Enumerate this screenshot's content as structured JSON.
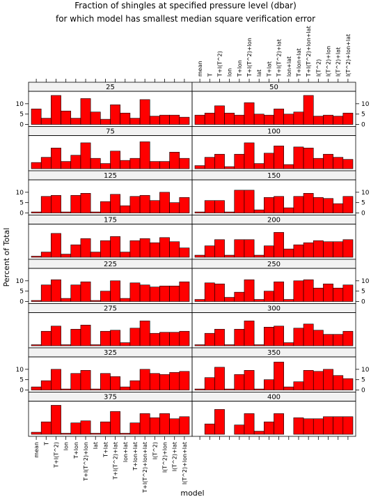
{
  "chart_data": {
    "type": "bar",
    "title": "Fraction of shingles at specified pressure level (dbar)",
    "subtitle": "for which model has smallest median square verification error",
    "xlabel": "model",
    "ylabel": "Percent of Total",
    "ylim": [
      -1,
      16
    ],
    "yticks": [
      0,
      5,
      10
    ],
    "bar_color": "#ff0000",
    "strip_color": "#f2f2f2",
    "categories": [
      "mean",
      "T",
      "T+I(T^2)",
      "lon",
      "T+lon",
      "T+I(T^2)+lon",
      "lat",
      "T+lat",
      "T+I(T^2)+lat",
      "lon+lat",
      "T+lon+lat",
      "T+I(T^2)+lon+lat",
      "I(T^2)",
      "I(T^2)+lon",
      "I(T^2)+lat",
      "I(T^2)+lon+lat"
    ],
    "panels": [
      {
        "level": "25",
        "values": [
          7.5,
          3,
          14,
          6.5,
          3,
          12.5,
          6,
          2.5,
          9.5,
          5.5,
          3,
          12,
          4,
          4.5,
          4.5,
          3.5
        ]
      },
      {
        "level": "50",
        "values": [
          4.5,
          5.5,
          9,
          5.5,
          4.5,
          10.5,
          5,
          4.5,
          7.5,
          5,
          6,
          14,
          4,
          4.5,
          4,
          5.5
        ]
      },
      {
        "level": "75",
        "values": [
          3,
          5.5,
          10,
          3.5,
          6.5,
          12.5,
          5,
          2.5,
          8.5,
          4,
          5,
          13,
          3.5,
          3.5,
          8,
          5
        ]
      },
      {
        "level": "100",
        "values": [
          1.5,
          5.5,
          7,
          1,
          7,
          12.5,
          2.5,
          7.5,
          11,
          2,
          10.5,
          10,
          5,
          7,
          5.5,
          4.5
        ]
      },
      {
        "level": "125",
        "values": [
          0.5,
          8,
          8.5,
          0.5,
          8.5,
          9.5,
          0.5,
          5.5,
          9,
          3.5,
          8,
          8.5,
          6,
          10,
          5,
          7.5
        ]
      },
      {
        "level": "150",
        "values": [
          0.5,
          6,
          6,
          0.5,
          11,
          11,
          1.5,
          7.5,
          8,
          2.5,
          8,
          9.5,
          7.5,
          7,
          4.5,
          8
        ]
      },
      {
        "level": "175",
        "values": [
          0.5,
          2.5,
          11.5,
          1.5,
          6,
          9,
          2.5,
          8,
          10,
          2.5,
          8,
          9,
          7,
          9.5,
          7.5,
          4.5
        ]
      },
      {
        "level": "200",
        "values": [
          1,
          5.5,
          8.5,
          1,
          8.5,
          8.5,
          1,
          5.5,
          12,
          4,
          6,
          7,
          8,
          7.5,
          7.5,
          8.5
        ]
      },
      {
        "level": "225",
        "values": [
          0.5,
          8,
          10.5,
          1.5,
          8,
          9.5,
          0.5,
          5,
          10,
          1.5,
          9,
          8,
          7,
          7.5,
          7.5,
          9.5
        ]
      },
      {
        "level": "250",
        "values": [
          1,
          9,
          8.5,
          2,
          4.5,
          10.5,
          1,
          5,
          9.5,
          1,
          10,
          10.5,
          6.5,
          8.5,
          6.5,
          8
        ]
      },
      {
        "level": "275",
        "values": [
          0.5,
          7,
          9.5,
          0.5,
          8,
          10,
          0.5,
          7,
          7.5,
          1.5,
          8.5,
          12,
          6,
          6.5,
          6.5,
          7
        ]
      },
      {
        "level": "300",
        "values": [
          0.5,
          6,
          8,
          0.5,
          8,
          12,
          0.5,
          9,
          9.5,
          1.5,
          8.5,
          10.5,
          7.5,
          5.5,
          5.5,
          7
        ]
      },
      {
        "level": "325",
        "values": [
          1.5,
          4.5,
          10,
          0.5,
          8,
          9.5,
          0.5,
          8,
          6.5,
          1.5,
          4.5,
          10,
          8,
          7.5,
          8.5,
          9
        ]
      },
      {
        "level": "350",
        "values": [
          0.5,
          6,
          11,
          0.5,
          7.5,
          9.5,
          0.5,
          5,
          13.5,
          1.5,
          4,
          9.5,
          9,
          10,
          7,
          5.5
        ]
      },
      {
        "level": "375",
        "values": [
          1,
          6,
          14,
          0.5,
          5.5,
          6.5,
          0.5,
          6,
          11,
          0.5,
          5.5,
          10,
          8,
          10,
          7.5,
          8.5
        ]
      },
      {
        "level": "400",
        "values": [
          0,
          5,
          12,
          0,
          4.5,
          10,
          1.5,
          6,
          10,
          0,
          8,
          7.5,
          7.5,
          8.5,
          8.5,
          8.5
        ]
      }
    ]
  }
}
